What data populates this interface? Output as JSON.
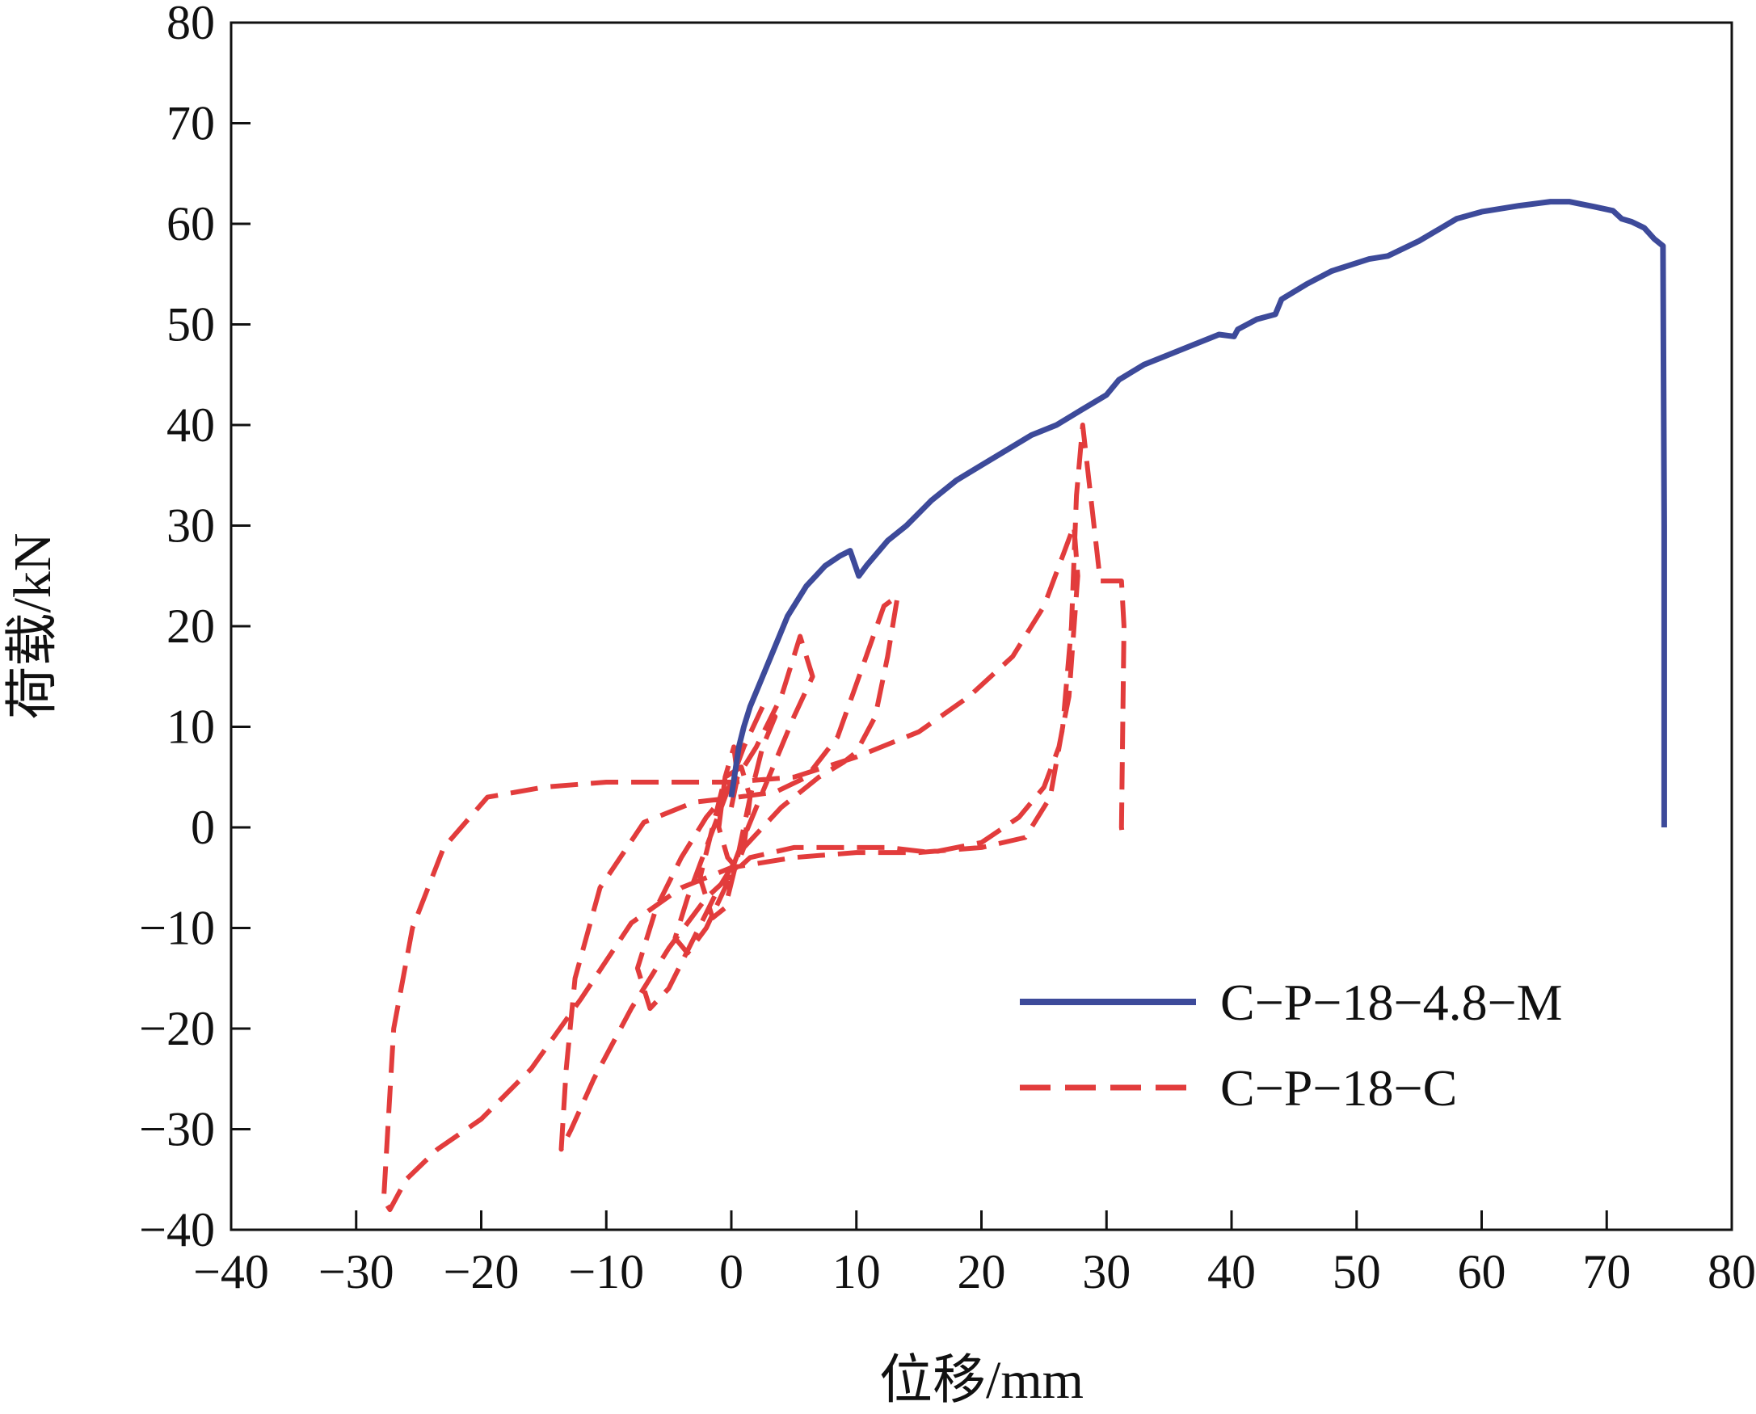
{
  "chart_data": {
    "type": "line",
    "xlabel": "位移/mm",
    "ylabel": "荷载/kN",
    "xlim": [
      -40,
      80
    ],
    "ylim": [
      -40,
      80
    ],
    "xticks": [
      -40,
      -30,
      -20,
      -10,
      0,
      10,
      20,
      30,
      40,
      50,
      60,
      70,
      80
    ],
    "yticks": [
      -40,
      -30,
      -20,
      -10,
      0,
      10,
      20,
      30,
      40,
      50,
      60,
      70,
      80
    ],
    "xtick_labels": [
      "−40",
      "−30",
      "−20",
      "−10",
      "0",
      "10",
      "20",
      "30",
      "40",
      "50",
      "60",
      "70",
      "80"
    ],
    "ytick_labels": [
      "−40",
      "−30",
      "−20",
      "−10",
      "0",
      "10",
      "20",
      "30",
      "40",
      "50",
      "60",
      "70",
      "80"
    ],
    "grid": false,
    "legend_position": "lower-right",
    "series": [
      {
        "name": "C−P−18−4.8−M",
        "color": "#3d4a9a",
        "style": "solid",
        "x": [
          0,
          0.6,
          1.0,
          1.5,
          2.5,
          3.5,
          4.5,
          6,
          7.5,
          8.7,
          9.5,
          10.2,
          10.8,
          12.5,
          14,
          16,
          18,
          20,
          22,
          24,
          26,
          28,
          30,
          31,
          33,
          35,
          37,
          39,
          40.2,
          40.5,
          42,
          43.5,
          44,
          46,
          48,
          51,
          52.5,
          55,
          58,
          60,
          63,
          65.5,
          67,
          69,
          70.5,
          71.2,
          72,
          73,
          73.8,
          74.5,
          74.6,
          74.6
        ],
        "y": [
          3,
          8,
          10,
          12,
          15,
          18,
          21,
          24,
          26,
          27,
          27.5,
          25,
          26,
          28.5,
          30,
          32.5,
          34.5,
          36,
          37.5,
          39,
          40,
          41.5,
          43,
          44.5,
          46,
          47,
          48,
          49,
          48.8,
          49.5,
          50.5,
          51,
          52.5,
          54,
          55.3,
          56.5,
          56.8,
          58.3,
          60.5,
          61.2,
          61.8,
          62.2,
          62.2,
          61.7,
          61.3,
          60.5,
          60.2,
          59.6,
          58.5,
          57.8,
          30,
          0
        ]
      },
      {
        "name": "C−P−18−C",
        "color": "#e23c3c",
        "style": "dashed",
        "x": [
          0,
          0.5,
          0.2,
          -0.5,
          -1,
          -0.3,
          0.4,
          1,
          1.5,
          0.8,
          -0.5,
          -1.5,
          -2.5,
          -1.5,
          -0.5,
          0.5,
          1.5,
          2.5,
          3.5,
          2.5,
          1,
          -0.5,
          -2,
          -3.5,
          -4.5,
          -3.5,
          -2,
          -0.5,
          1,
          3,
          5,
          6.5,
          5.5,
          4,
          2,
          0,
          -2,
          -4,
          -6,
          -7.5,
          -6.5,
          -5,
          -3,
          -1,
          1,
          4,
          7,
          9,
          10,
          11.5,
          12.5,
          13.3,
          12.2,
          10.5,
          8.5,
          6,
          3.5,
          0.5,
          -3,
          -7,
          -10.5,
          -12.5,
          -13.2,
          -13.6,
          -12.8,
          -11,
          -8,
          -5,
          -2,
          1.5,
          5,
          9,
          12.5,
          16,
          20,
          23,
          25,
          26.2,
          27,
          27.7,
          27.4,
          26.5,
          25,
          22.5,
          19,
          15,
          10,
          5,
          0,
          -5,
          -10,
          -15,
          -19.5,
          -23,
          -25.5,
          -27,
          -27.8,
          -27.3,
          -26,
          -23.5,
          -20,
          -16,
          -12,
          -8,
          -4,
          0,
          5,
          10,
          15,
          20,
          23.5,
          25.5,
          26.5,
          27.2,
          27.6,
          28.1,
          29.5,
          31.2,
          31.4,
          31.2,
          31.3
        ],
        "y": [
          2,
          5,
          8,
          5,
          0,
          -3,
          -4,
          -2,
          3,
          6,
          5,
          0,
          -5,
          -9,
          -8,
          -3,
          3,
          8,
          11,
          12,
          8,
          3,
          -2,
          -7,
          -11,
          -12.5,
          -10,
          -6,
          -1,
          5,
          11,
          15,
          19,
          13,
          8,
          4,
          1,
          -3,
          -8,
          -14,
          -18,
          -16,
          -11,
          -6,
          -2,
          2,
          5,
          6.5,
          7.5,
          11,
          17,
          23,
          22,
          16,
          9,
          5,
          3.5,
          3,
          2.5,
          0.5,
          -6,
          -15,
          -24,
          -32,
          -30,
          -25,
          -18,
          -12,
          -7,
          -3,
          -2,
          -2,
          -2,
          -2.5,
          -1.5,
          1,
          4,
          8,
          13,
          25,
          30,
          27,
          22,
          17,
          13,
          9.5,
          7,
          5,
          4.5,
          4.5,
          4.5,
          4,
          3,
          -2,
          -10,
          -20,
          -37,
          -38,
          -35,
          -32,
          -29,
          -24,
          -17,
          -9.5,
          -6,
          -4,
          -3,
          -2.5,
          -2.5,
          -2,
          -1,
          3,
          10,
          20,
          33,
          40,
          24.5,
          24.5,
          20,
          0,
          -1
        ]
      }
    ]
  }
}
